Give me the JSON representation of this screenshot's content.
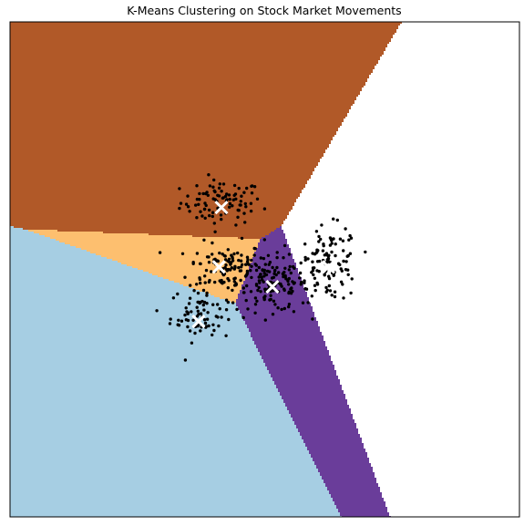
{
  "chart_data": {
    "type": "scatter",
    "title": "K-Means Clustering on Stock Market Movements",
    "xlabel": "",
    "ylabel": "",
    "xlim": [
      -1.0,
      1.0
    ],
    "ylim": [
      -1.0,
      1.0
    ],
    "ticks_visible": false,
    "grid": false,
    "legend": "none",
    "cluster_region_colors": [
      "#b15928",
      "#fdbf6f",
      "#a6cee3",
      "#6a3d9a",
      "#33a02c"
    ],
    "centroid_color": "#ffffff",
    "point_color": "#000000",
    "centroids": [
      {
        "x": -0.17,
        "y": 0.25
      },
      {
        "x": -0.18,
        "y": 0.01
      },
      {
        "x": -0.26,
        "y": -0.21
      },
      {
        "x": 0.03,
        "y": -0.07
      },
      {
        "x": 0.25,
        "y": 0.01
      }
    ],
    "clusters": [
      {
        "center": [
          -0.17,
          0.27
        ],
        "spread": [
          0.08,
          0.045
        ],
        "count": 90
      },
      {
        "center": [
          -0.15,
          0.01
        ],
        "spread": [
          0.075,
          0.05
        ],
        "count": 110
      },
      {
        "center": [
          -0.25,
          -0.18
        ],
        "spread": [
          0.06,
          0.055
        ],
        "count": 75
      },
      {
        "center": [
          0.03,
          -0.06
        ],
        "spread": [
          0.07,
          0.055
        ],
        "count": 130
      },
      {
        "center": [
          0.25,
          0.02
        ],
        "spread": [
          0.06,
          0.075
        ],
        "count": 110
      }
    ]
  }
}
